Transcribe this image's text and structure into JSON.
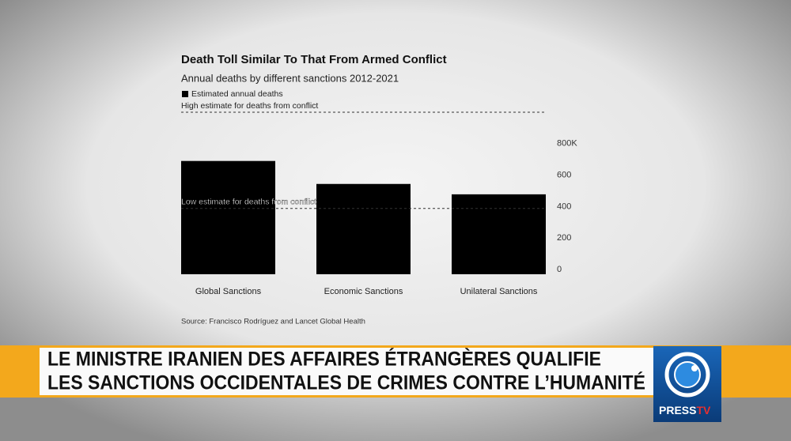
{
  "chart_data": {
    "type": "bar",
    "title": "Death Toll Similar To That From Armed Conflict",
    "subtitle": "Annual deaths by different sanctions 2012-2021",
    "categories": [
      "Global Sanctions",
      "Economic Sanctions",
      "Unilateral Sanctions"
    ],
    "series": [
      {
        "name": "Estimated annual deaths",
        "color": "#000000",
        "values": [
          720,
          574,
          508
        ]
      }
    ],
    "ylim": [
      0,
      1050
    ],
    "yticks": [
      0,
      200,
      400,
      600,
      {
        "value": 800,
        "label": "800K"
      }
    ],
    "reference_lines": [
      {
        "label": "Low estimate for deaths from conflict",
        "value": 418
      },
      {
        "label": "High estimate for deaths from conflict",
        "value": 1030
      }
    ],
    "source": "Source: Francisco Rodríguez and Lancet Global Health"
  },
  "banner": {
    "lines": [
      "LE MINISTRE IRANIEN DES AFFAIRES ÉTRANGÈRES QUALIFIE",
      "LES SANCTIONS OCCIDENTALES DE CRIMES CONTRE L’HUMANITÉ"
    ]
  },
  "logo": {
    "part1": "PRESS",
    "part2": "TV"
  }
}
